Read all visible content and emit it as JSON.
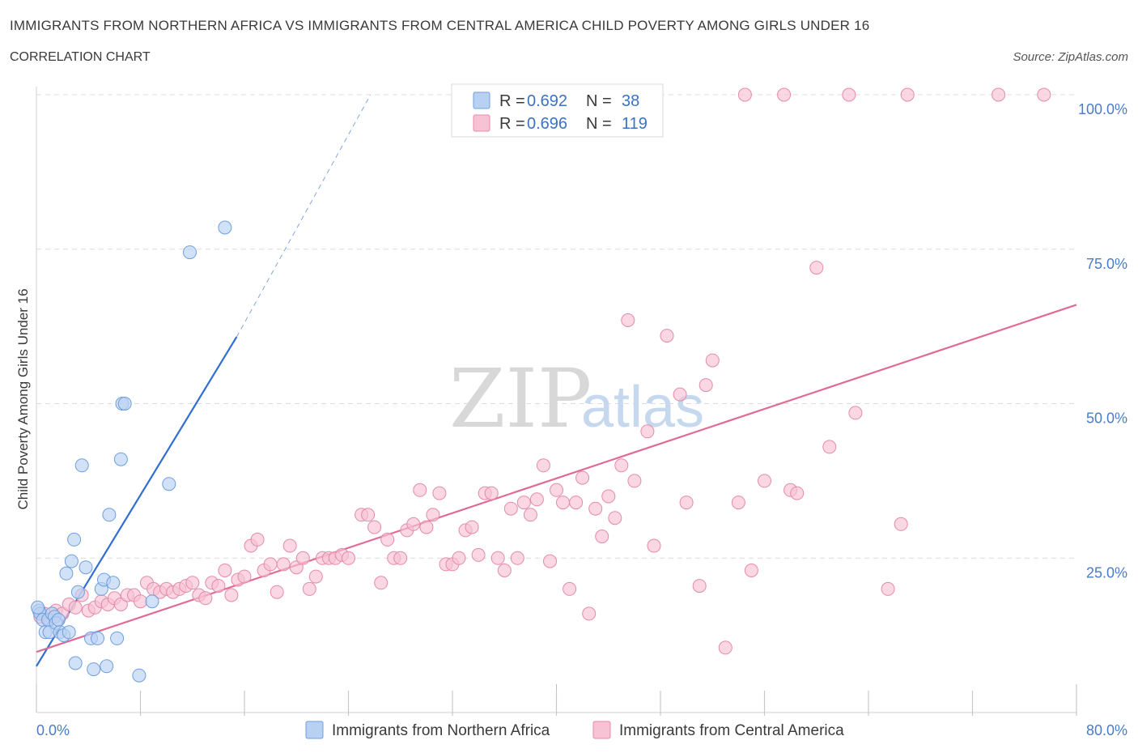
{
  "title": "IMMIGRANTS FROM NORTHERN AFRICA VS IMMIGRANTS FROM CENTRAL AMERICA CHILD POVERTY AMONG GIRLS UNDER 16",
  "subtitle": "CORRELATION CHART",
  "source": "Source: ZipAtlas.com",
  "watermark": {
    "zip": "ZIP",
    "atlas": "atlas"
  },
  "legend": {
    "rows": [
      {
        "r_label": "R =",
        "r_value": "0.692",
        "n_label": "N =",
        "n_value": "38"
      },
      {
        "r_label": "R =",
        "r_value": "0.696",
        "n_label": "N =",
        "n_value": "119"
      }
    ]
  },
  "colors": {
    "blue_fill": "#b8d1f3",
    "blue_stroke": "#6f9fdc",
    "blue_line": "#2f6fd0",
    "pink_fill": "#f7c2d3",
    "pink_stroke": "#e58aaa",
    "pink_line": "#e06a96",
    "axis_text": "#4a7cc9",
    "grid": "#dcdcdc"
  },
  "chart_data": {
    "type": "scatter",
    "title": "IMMIGRANTS FROM NORTHERN AFRICA VS IMMIGRANTS FROM CENTRAL AMERICA CHILD POVERTY AMONG GIRLS UNDER 16",
    "xlabel": "",
    "ylabel": "Child Poverty Among Girls Under 16",
    "xlim": [
      0,
      80
    ],
    "ylim": [
      0,
      100
    ],
    "x_tick_labels": [
      "0.0%",
      "80.0%"
    ],
    "y_tick_labels": [
      "25.0%",
      "50.0%",
      "75.0%",
      "100.0%"
    ],
    "y_ticks": [
      25,
      50,
      75,
      100
    ],
    "grid": true,
    "legend_position": "top-center",
    "series": [
      {
        "name": "Immigrants from Northern Africa",
        "R": 0.692,
        "N": 38,
        "trend": {
          "x0": 0,
          "y0": 7.5,
          "x1": 15.4,
          "y1": 60.8,
          "dashed_to_x": 25.7,
          "dashed_to_y": 100
        },
        "points": [
          [
            0.2,
            16.5
          ],
          [
            0.3,
            16.0
          ],
          [
            0.5,
            15.0
          ],
          [
            0.7,
            13.0
          ],
          [
            0.9,
            15.0
          ],
          [
            1.0,
            13.0
          ],
          [
            1.2,
            16.0
          ],
          [
            1.4,
            15.5
          ],
          [
            1.5,
            14.5
          ],
          [
            1.7,
            15.0
          ],
          [
            1.8,
            13.0
          ],
          [
            2.1,
            12.5
          ],
          [
            2.3,
            22.5
          ],
          [
            2.5,
            13.0
          ],
          [
            2.7,
            24.5
          ],
          [
            2.9,
            28.0
          ],
          [
            3.0,
            8.0
          ],
          [
            3.2,
            19.5
          ],
          [
            3.5,
            40.0
          ],
          [
            3.8,
            23.5
          ],
          [
            4.2,
            12.0
          ],
          [
            4.4,
            7.0
          ],
          [
            4.7,
            12.0
          ],
          [
            5.0,
            20.0
          ],
          [
            5.2,
            21.5
          ],
          [
            5.4,
            7.5
          ],
          [
            5.6,
            32.0
          ],
          [
            5.9,
            21.0
          ],
          [
            6.2,
            12.0
          ],
          [
            6.5,
            41.0
          ],
          [
            6.6,
            50.0
          ],
          [
            6.8,
            50.0
          ],
          [
            7.9,
            6.0
          ],
          [
            8.9,
            18.0
          ],
          [
            10.2,
            37.0
          ],
          [
            11.8,
            74.5
          ],
          [
            14.5,
            78.5
          ],
          [
            0.1,
            17.0
          ]
        ]
      },
      {
        "name": "Immigrants from Central America",
        "R": 0.696,
        "N": 119,
        "trend": {
          "x0": 0,
          "y0": 9.8,
          "x1": 80,
          "y1": 66.0
        },
        "points": [
          [
            0.3,
            15.5
          ],
          [
            0.6,
            16.0
          ],
          [
            1.0,
            15.0
          ],
          [
            1.5,
            16.5
          ],
          [
            2.0,
            16.0
          ],
          [
            2.5,
            17.5
          ],
          [
            3.0,
            17.0
          ],
          [
            3.5,
            19.0
          ],
          [
            4.0,
            16.5
          ],
          [
            4.5,
            17.0
          ],
          [
            5.0,
            18.0
          ],
          [
            5.5,
            17.5
          ],
          [
            6.0,
            18.5
          ],
          [
            6.5,
            17.5
          ],
          [
            7.0,
            19.0
          ],
          [
            7.5,
            19.0
          ],
          [
            8.0,
            18.0
          ],
          [
            8.5,
            21.0
          ],
          [
            9.0,
            20.0
          ],
          [
            9.5,
            19.5
          ],
          [
            10.0,
            20.0
          ],
          [
            10.5,
            19.5
          ],
          [
            11.0,
            20.0
          ],
          [
            11.5,
            20.5
          ],
          [
            12.0,
            21.0
          ],
          [
            12.5,
            19.0
          ],
          [
            13.0,
            18.5
          ],
          [
            13.5,
            21.0
          ],
          [
            14.0,
            20.5
          ],
          [
            14.5,
            23.0
          ],
          [
            15.0,
            19.0
          ],
          [
            15.5,
            21.5
          ],
          [
            16.0,
            22.0
          ],
          [
            16.5,
            27.0
          ],
          [
            17.0,
            28.0
          ],
          [
            17.5,
            23.0
          ],
          [
            18.0,
            24.0
          ],
          [
            18.5,
            19.5
          ],
          [
            19.0,
            24.0
          ],
          [
            19.5,
            27.0
          ],
          [
            20.0,
            23.5
          ],
          [
            20.5,
            25.0
          ],
          [
            21.0,
            20.0
          ],
          [
            21.5,
            22.0
          ],
          [
            22.0,
            25.0
          ],
          [
            22.5,
            25.0
          ],
          [
            23.0,
            25.0
          ],
          [
            23.5,
            25.5
          ],
          [
            24.0,
            25.0
          ],
          [
            25.0,
            32.0
          ],
          [
            25.5,
            32.0
          ],
          [
            26.0,
            30.0
          ],
          [
            26.5,
            21.0
          ],
          [
            27.0,
            28.0
          ],
          [
            27.5,
            25.0
          ],
          [
            28.0,
            25.0
          ],
          [
            28.5,
            29.5
          ],
          [
            29.0,
            30.5
          ],
          [
            29.5,
            36.0
          ],
          [
            30.0,
            30.0
          ],
          [
            30.5,
            32.0
          ],
          [
            31.0,
            35.5
          ],
          [
            31.5,
            24.0
          ],
          [
            32.0,
            24.0
          ],
          [
            32.5,
            25.0
          ],
          [
            33.0,
            29.5
          ],
          [
            33.5,
            30.0
          ],
          [
            34.0,
            25.5
          ],
          [
            34.5,
            35.5
          ],
          [
            35.0,
            35.5
          ],
          [
            35.5,
            25.0
          ],
          [
            36.0,
            23.0
          ],
          [
            36.5,
            33.0
          ],
          [
            37.0,
            25.0
          ],
          [
            37.5,
            34.0
          ],
          [
            38.0,
            32.0
          ],
          [
            38.5,
            34.5
          ],
          [
            39.0,
            40.0
          ],
          [
            39.5,
            24.5
          ],
          [
            40.0,
            36.0
          ],
          [
            40.5,
            34.0
          ],
          [
            41.0,
            20.0
          ],
          [
            41.5,
            34.0
          ],
          [
            42.0,
            38.0
          ],
          [
            42.5,
            16.0
          ],
          [
            43.0,
            33.0
          ],
          [
            43.5,
            28.5
          ],
          [
            44.0,
            35.0
          ],
          [
            44.5,
            31.5
          ],
          [
            45.0,
            40.0
          ],
          [
            45.5,
            63.5
          ],
          [
            46.0,
            37.5
          ],
          [
            47.0,
            45.5
          ],
          [
            47.5,
            27.0
          ],
          [
            48.5,
            61.0
          ],
          [
            49.5,
            51.5
          ],
          [
            50.0,
            34.0
          ],
          [
            51.0,
            20.5
          ],
          [
            51.5,
            53.0
          ],
          [
            52.0,
            57.0
          ],
          [
            53.0,
            10.5
          ],
          [
            54.0,
            34.0
          ],
          [
            55.0,
            23.0
          ],
          [
            56.0,
            37.5
          ],
          [
            58.0,
            36.0
          ],
          [
            58.5,
            35.5
          ],
          [
            60.0,
            72.0
          ],
          [
            61.0,
            43.0
          ],
          [
            63.0,
            48.5
          ],
          [
            65.5,
            20.0
          ],
          [
            66.5,
            30.5
          ],
          [
            54.5,
            100.0
          ],
          [
            57.5,
            100.0
          ],
          [
            62.5,
            100.0
          ],
          [
            67.0,
            100.0
          ],
          [
            74.0,
            100.0
          ],
          [
            77.5,
            100.0
          ]
        ]
      }
    ]
  }
}
